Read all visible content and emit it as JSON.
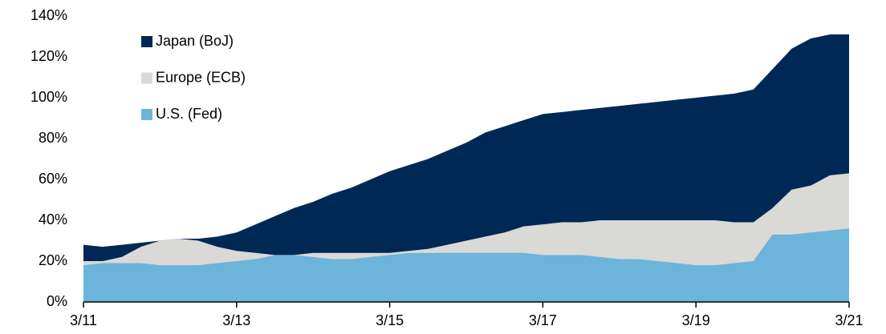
{
  "chart_data": {
    "type": "area",
    "x": [
      2011.2,
      2011.45,
      2011.7,
      2011.95,
      2012.2,
      2012.45,
      2012.7,
      2012.95,
      2013.2,
      2013.45,
      2013.7,
      2013.95,
      2014.2,
      2014.45,
      2014.7,
      2014.95,
      2015.2,
      2015.45,
      2015.7,
      2015.95,
      2016.2,
      2016.45,
      2016.7,
      2016.95,
      2017.2,
      2017.45,
      2017.7,
      2017.95,
      2018.2,
      2018.45,
      2018.7,
      2018.95,
      2019.2,
      2019.45,
      2019.7,
      2019.95,
      2020.2,
      2020.45,
      2020.7,
      2020.95,
      2021.2
    ],
    "series": [
      {
        "name": "Japan (BoJ)",
        "color": "#002855",
        "values": [
          28,
          27,
          28,
          29,
          30,
          31,
          31,
          32,
          34,
          38,
          42,
          46,
          49,
          53,
          56,
          60,
          64,
          67,
          70,
          74,
          78,
          83,
          86,
          89,
          92,
          93,
          94,
          95,
          96,
          97,
          98,
          99,
          100,
          101,
          102,
          104,
          114,
          124,
          129,
          131,
          131
        ]
      },
      {
        "name": "Europe (ECB)",
        "color": "#d9d9d6",
        "values": [
          20,
          20,
          22,
          27,
          30,
          31,
          30,
          27,
          25,
          24,
          23,
          23,
          24,
          24,
          24,
          24,
          24,
          25,
          26,
          28,
          30,
          32,
          34,
          37,
          38,
          39,
          39,
          40,
          40,
          40,
          40,
          40,
          40,
          40,
          39,
          39,
          46,
          55,
          57,
          62,
          63
        ]
      },
      {
        "name": "U.S. (Fed)",
        "color": "#6cb4da",
        "values": [
          18,
          19,
          19,
          19,
          18,
          18,
          18,
          19,
          20,
          21,
          23,
          23,
          22,
          21,
          21,
          22,
          23,
          24,
          24,
          24,
          24,
          24,
          24,
          24,
          23,
          23,
          23,
          22,
          21,
          21,
          20,
          19,
          18,
          18,
          19,
          20,
          33,
          33,
          34,
          35,
          36
        ]
      }
    ],
    "xlim": [
      2011.2,
      2021.2
    ],
    "xticks": [
      {
        "value": 2011.2,
        "label": "3/11"
      },
      {
        "value": 2013.2,
        "label": "3/13"
      },
      {
        "value": 2015.2,
        "label": "3/15"
      },
      {
        "value": 2017.2,
        "label": "3/17"
      },
      {
        "value": 2019.2,
        "label": "3/19"
      },
      {
        "value": 2021.2,
        "label": "3/21"
      }
    ],
    "ylim": [
      0,
      140
    ],
    "yticks": [
      {
        "value": 0,
        "label": "0%"
      },
      {
        "value": 20,
        "label": "20%"
      },
      {
        "value": 40,
        "label": "40%"
      },
      {
        "value": 60,
        "label": "60%"
      },
      {
        "value": 80,
        "label": "80%"
      },
      {
        "value": 100,
        "label": "100%"
      },
      {
        "value": 120,
        "label": "120%"
      },
      {
        "value": 140,
        "label": "140%"
      }
    ],
    "legend": "upper left"
  }
}
